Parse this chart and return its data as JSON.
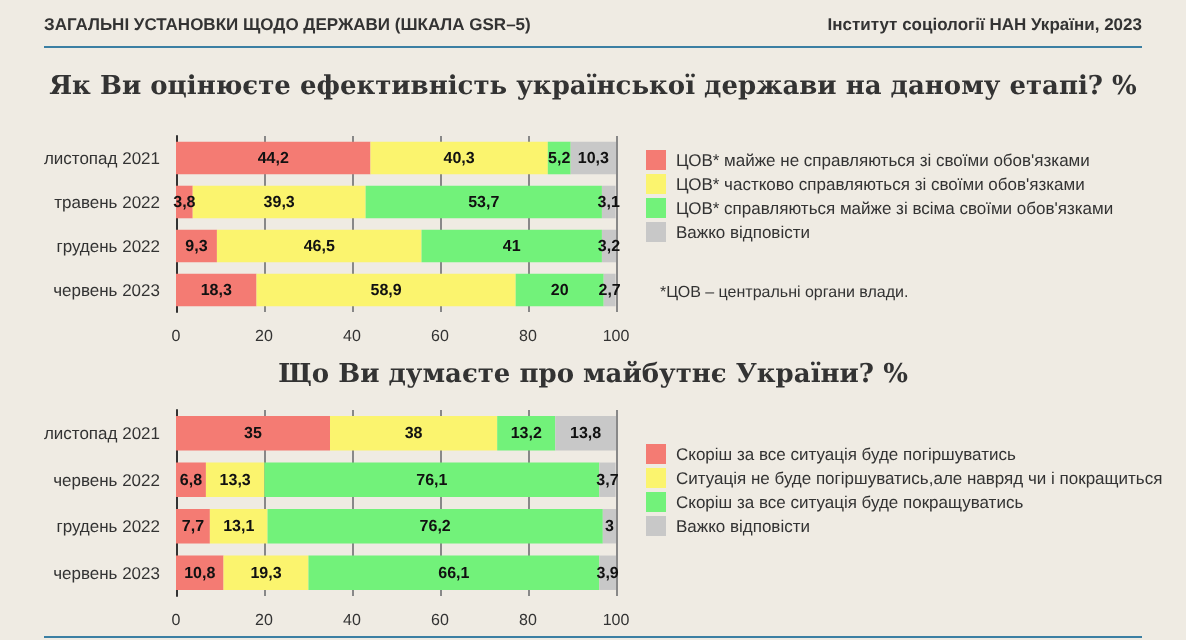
{
  "chart_data": [
    {
      "type": "bar",
      "title": "Як Ви оцінюєте ефективність української держави на даному етапі? %",
      "orientation": "horizontal",
      "stacked": true,
      "categories": [
        "листопад 2021",
        "травень 2022",
        "грудень 2022",
        "червень 2023"
      ],
      "series": [
        {
          "name": "ЦОВ* майже не справляються зі своїми обов'язками",
          "color": "#f47b73",
          "values": [
            44.2,
            3.8,
            9.3,
            18.3
          ],
          "value_labels": [
            "44,2",
            "3,8",
            "9,3",
            "18,3"
          ]
        },
        {
          "name": "ЦОВ* частково справляються зі своїми обов'язками",
          "color": "#fbf46e",
          "values": [
            40.3,
            39.3,
            46.5,
            58.9
          ],
          "value_labels": [
            "40,3",
            "39,3",
            "46,5",
            "58,9"
          ]
        },
        {
          "name": "ЦОВ* справляються майже зі всіма своїми обов'язками",
          "color": "#72f27a",
          "values": [
            5.2,
            53.7,
            41,
            20
          ],
          "value_labels": [
            "5,2",
            "53,7",
            "41",
            "20"
          ]
        },
        {
          "name": "Важко відповісти",
          "color": "#c8c8c8",
          "values": [
            10.3,
            3.1,
            3.2,
            2.7
          ],
          "value_labels": [
            "10,3",
            "3,1",
            "3,2",
            "2,7"
          ]
        }
      ],
      "xlim": [
        0,
        100
      ],
      "xticks": [
        0,
        20,
        40,
        60,
        80,
        100
      ],
      "grid": "x",
      "legend": "right",
      "annotations": [
        "ЗАГАЛЬНІ УСТАНОВКИ ЩОДО ДЕРЖАВИ (ШКАЛА GSR–5)",
        "Інститут соціології НАН України, 2023",
        "*ЦОВ – центральні органи влади."
      ]
    },
    {
      "type": "bar",
      "title": "Що Ви думаєте про майбутнє України? %",
      "orientation": "horizontal",
      "stacked": true,
      "categories": [
        "листопад 2021",
        "червень 2022",
        "грудень 2022",
        "червень 2023"
      ],
      "series": [
        {
          "name": "Скоріш за все ситуація буде погіршуватись",
          "color": "#f47b73",
          "values": [
            35,
            6.8,
            7.7,
            10.8
          ],
          "value_labels": [
            "35",
            "6,8",
            "7,7",
            "10,8"
          ]
        },
        {
          "name": "Ситуація не буде погіршуватись,але навряд чи і покращиться",
          "color": "#fbf46e",
          "values": [
            38,
            13.3,
            13.1,
            19.3
          ],
          "value_labels": [
            "38",
            "13,3",
            "13,1",
            "19,3"
          ]
        },
        {
          "name": "Скоріш за все ситуація буде покращуватись",
          "color": "#72f27a",
          "values": [
            13.2,
            76.1,
            76.2,
            66.1
          ],
          "value_labels": [
            "13,2",
            "76,1",
            "76,2",
            "66,1"
          ]
        },
        {
          "name": "Важко відповісти",
          "color": "#c8c8c8",
          "values": [
            13.8,
            3.7,
            3,
            3.9
          ],
          "value_labels": [
            "13,8",
            "3,7",
            "3",
            "3,9"
          ]
        }
      ],
      "xlim": [
        0,
        100
      ],
      "xticks": [
        0,
        20,
        40,
        60,
        80,
        100
      ],
      "grid": "x",
      "legend": "right"
    }
  ]
}
